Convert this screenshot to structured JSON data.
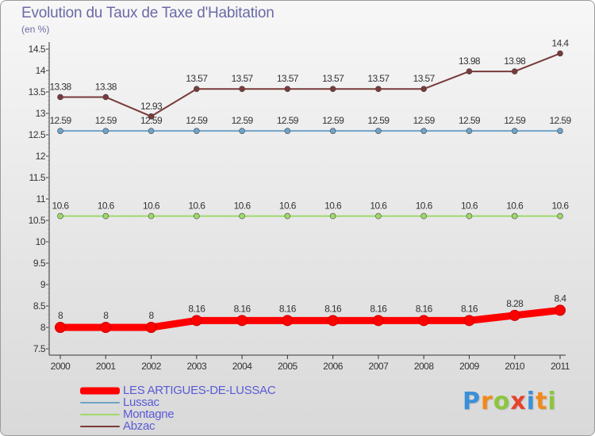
{
  "header": {
    "title": "Evolution du Taux de Taxe d'Habitation",
    "subtitle": "(en %)"
  },
  "brand": {
    "text": "Proxiti"
  },
  "chart_data": {
    "type": "line",
    "title": "Evolution du Taux de Taxe d'Habitation",
    "ylabel": "(en %)",
    "xlabel": "",
    "ylim": [
      7.5,
      14.5
    ],
    "yticks": [
      "7.5",
      "8",
      "8.5",
      "9",
      "9.5",
      "10",
      "10.5",
      "11",
      "11.5",
      "12",
      "12.5",
      "13",
      "13.5",
      "14",
      "14.5"
    ],
    "x": [
      "2000",
      "2001",
      "2002",
      "2003",
      "2004",
      "2005",
      "2006",
      "2007",
      "2008",
      "2009",
      "2010",
      "2011"
    ],
    "grid": false,
    "legend": "bottom-left",
    "series": [
      {
        "name": "LES ARTIGUES-DE-LUSSAC",
        "color": "#ff0000",
        "values": [
          8,
          8,
          8,
          8.16,
          8.16,
          8.16,
          8.16,
          8.16,
          8.16,
          8.16,
          8.28,
          8.4
        ],
        "labels": [
          "8",
          "8",
          "8",
          "8.16",
          "8.16",
          "8.16",
          "8.16",
          "8.16",
          "8.16",
          "8.16",
          "8.28",
          "8.4"
        ]
      },
      {
        "name": "Lussac",
        "color": "#6fa3c8",
        "values": [
          12.59,
          12.59,
          12.59,
          12.59,
          12.59,
          12.59,
          12.59,
          12.59,
          12.59,
          12.59,
          12.59,
          12.59
        ],
        "labels": [
          "12.59",
          "12.59",
          "12.59",
          "12.59",
          "12.59",
          "12.59",
          "12.59",
          "12.59",
          "12.59",
          "12.59",
          "12.59",
          "12.59"
        ]
      },
      {
        "name": "Montagne",
        "color": "#9fd96a",
        "values": [
          10.6,
          10.6,
          10.6,
          10.6,
          10.6,
          10.6,
          10.6,
          10.6,
          10.6,
          10.6,
          10.6,
          10.6
        ],
        "labels": [
          "10.6",
          "10.6",
          "10.6",
          "10.6",
          "10.6",
          "10.6",
          "10.6",
          "10.6",
          "10.6",
          "10.6",
          "10.6",
          "10.6"
        ]
      },
      {
        "name": "Abzac",
        "color": "#7a3a3a",
        "values": [
          13.38,
          13.38,
          12.93,
          13.57,
          13.57,
          13.57,
          13.57,
          13.57,
          13.57,
          13.98,
          13.98,
          14.4
        ],
        "labels": [
          "13.38",
          "13.38",
          "12.93",
          "13.57",
          "13.57",
          "13.57",
          "13.57",
          "13.57",
          "13.57",
          "13.98",
          "13.98",
          "14.4"
        ]
      }
    ]
  }
}
